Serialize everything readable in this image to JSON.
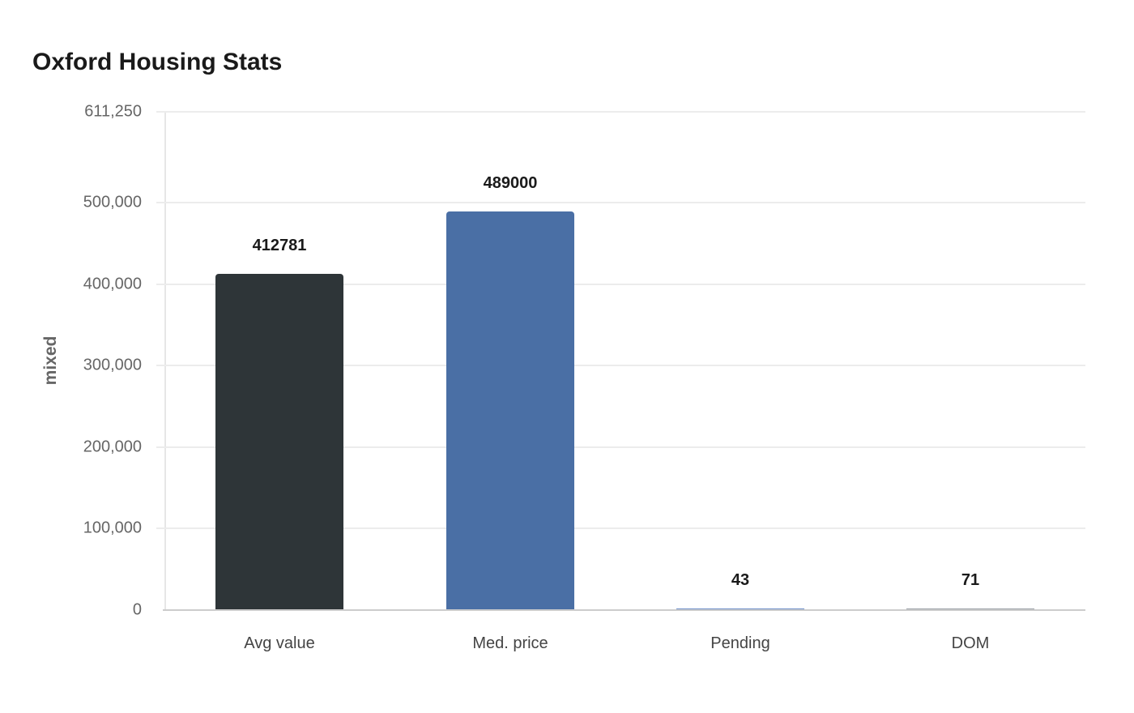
{
  "chart_data": {
    "type": "bar",
    "title": "Oxford Housing Stats",
    "xlabel": "",
    "ylabel": "mixed",
    "categories": [
      "Avg value",
      "Med. price",
      "Pending",
      "DOM"
    ],
    "values": [
      412781,
      489000,
      43,
      71
    ],
    "value_labels": [
      "412781",
      "489000",
      "43",
      "71"
    ],
    "colors": [
      "#2e3538",
      "#4a6fa5",
      "#6b8cc7",
      "#9aa0a6"
    ],
    "ylim": [
      0,
      611250
    ],
    "yticks": [
      0,
      100000,
      200000,
      300000,
      400000,
      500000,
      611250
    ],
    "ytick_labels": [
      "0",
      "100,000",
      "200,000",
      "300,000",
      "400,000",
      "500,000",
      "611,250"
    ],
    "grid": true,
    "legend": null
  }
}
